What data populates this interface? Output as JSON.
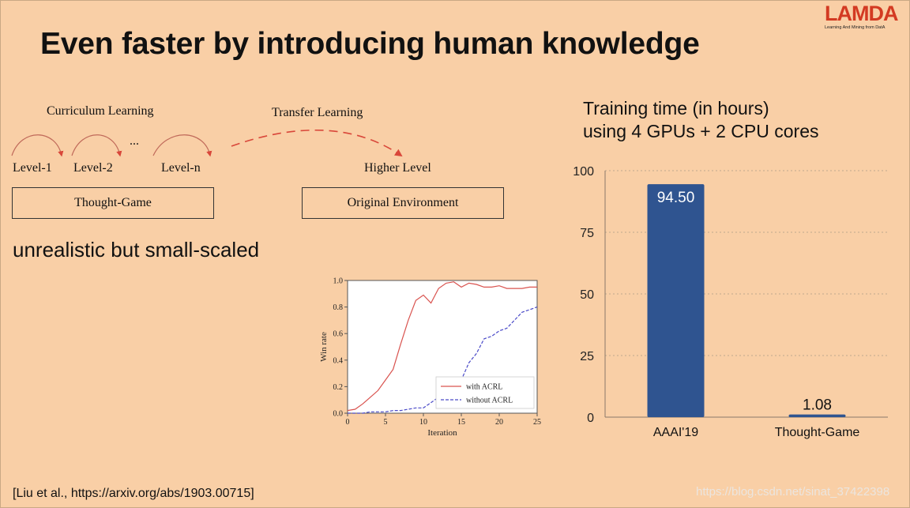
{
  "slide": {
    "title": "Even faster by introducing human knowledge",
    "logo": {
      "text": "LAMDA",
      "subtitle": "Learning And Mining from DatA"
    },
    "diagram": {
      "curriculum_label": "Curriculum Learning",
      "transfer_label": "Transfer Learning",
      "levels": [
        "Level-1",
        "Level-2",
        "Level-n"
      ],
      "ellipsis": "...",
      "higher_level": "Higher Level",
      "thought_game_box": "Thought-Game",
      "original_env_box": "Original Environment"
    },
    "subtitle_text": "unrealistic but small-scaled",
    "citation": "[Liu et al., https://arxiv.org/abs/1903.00715]",
    "watermark": "https://blog.csdn.net/sinat_37422398"
  },
  "chart_data": [
    {
      "type": "line",
      "xlabel": "Iteration",
      "ylabel": "Win rate",
      "xlim": [
        0,
        25
      ],
      "ylim": [
        0,
        1.0
      ],
      "xticks": [
        0,
        5,
        10,
        15,
        20,
        25
      ],
      "yticks": [
        0.0,
        0.2,
        0.4,
        0.6,
        0.8,
        1.0
      ],
      "legend_position": "bottom-right",
      "grid": false,
      "series": [
        {
          "name": "with ACRL",
          "color": "#d9534f",
          "style": "solid",
          "x": [
            0,
            1,
            2,
            3,
            4,
            5,
            6,
            7,
            8,
            9,
            10,
            11,
            12,
            13,
            14,
            15,
            16,
            17,
            18,
            19,
            20,
            21,
            22,
            23,
            24,
            25
          ],
          "y": [
            0.02,
            0.03,
            0.07,
            0.12,
            0.17,
            0.25,
            0.33,
            0.52,
            0.7,
            0.85,
            0.89,
            0.83,
            0.94,
            0.98,
            0.99,
            0.95,
            0.98,
            0.97,
            0.95,
            0.95,
            0.96,
            0.94,
            0.94,
            0.94,
            0.95,
            0.95
          ]
        },
        {
          "name": "without ACRL",
          "color": "#4a4ac8",
          "style": "dashed",
          "x": [
            0,
            1,
            2,
            3,
            4,
            5,
            6,
            7,
            8,
            9,
            10,
            11,
            12,
            13,
            14,
            15,
            16,
            17,
            18,
            19,
            20,
            21,
            22,
            23,
            24,
            25
          ],
          "y": [
            0.0,
            0.0,
            0.0,
            0.01,
            0.01,
            0.01,
            0.02,
            0.02,
            0.03,
            0.04,
            0.04,
            0.08,
            0.12,
            0.15,
            0.18,
            0.25,
            0.38,
            0.45,
            0.56,
            0.58,
            0.62,
            0.64,
            0.7,
            0.76,
            0.78,
            0.8
          ]
        }
      ]
    },
    {
      "type": "bar",
      "title_lines": [
        "Training time (in hours)",
        "using 4 GPUs + 2 CPU cores"
      ],
      "categories": [
        "AAAI'19",
        "Thought-Game"
      ],
      "values": [
        94.5,
        1.08
      ],
      "value_labels": [
        "94.50",
        "1.08"
      ],
      "ylim": [
        0,
        100
      ],
      "yticks": [
        0,
        25,
        50,
        75,
        100
      ],
      "bar_color": "#2f5490",
      "grid": true
    }
  ]
}
